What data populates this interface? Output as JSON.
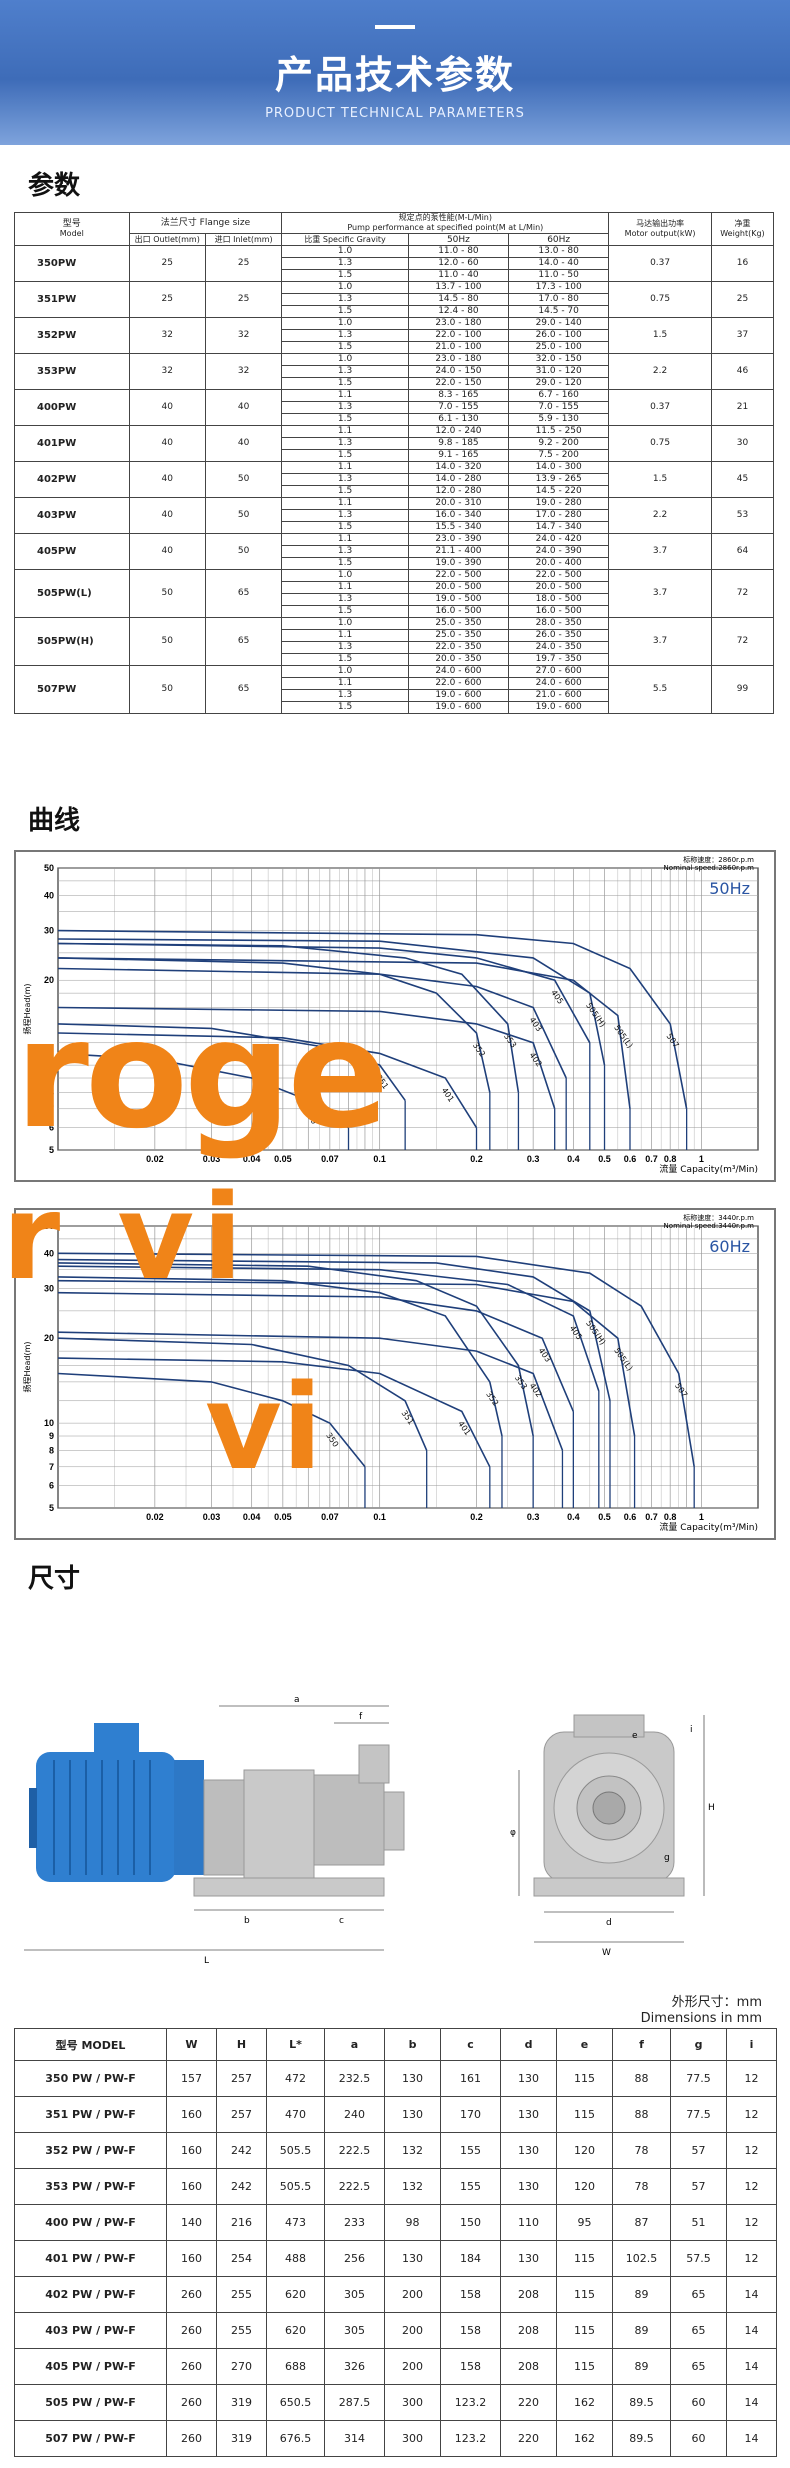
{
  "hero": {
    "title": "产品技术参数",
    "subtitle": "PRODUCT TECHNICAL PARAMETERS"
  },
  "sections": {
    "params": "参数",
    "curves": "曲线",
    "dims": "尺寸"
  },
  "params_table": {
    "h_model": "型号",
    "h_model_en": "Model",
    "h_flange": "法兰尺寸 Flange size",
    "h_outlet": "出口 Outlet(mm)",
    "h_inlet": "进口 Inlet(mm)",
    "h_perf1": "规定点的泵性能(M-L/Min)",
    "h_perf2": "Pump performance at specified point(M at L/Min)",
    "h_sg": "比重 Specific Gravity",
    "h_50": "50Hz",
    "h_60": "60Hz",
    "h_motor1": "马达输出功率",
    "h_motor2": "Motor output(kW)",
    "h_weight1": "净重",
    "h_weight2": "Weight(Kg)",
    "rows": [
      {
        "model": "350PW",
        "outlet": "25",
        "inlet": "25",
        "motor": "0.37",
        "weight": "16",
        "sg": [
          "1.0",
          "1.3",
          "1.5"
        ],
        "hz50": [
          "11.0 - 80",
          "12.0 - 60",
          "11.0 - 40"
        ],
        "hz60": [
          "13.0 - 80",
          "14.0 - 40",
          "11.0 - 50"
        ]
      },
      {
        "model": "351PW",
        "outlet": "25",
        "inlet": "25",
        "motor": "0.75",
        "weight": "25",
        "sg": [
          "1.0",
          "1.3",
          "1.5"
        ],
        "hz50": [
          "13.7 - 100",
          "14.5 - 80",
          "12.4 - 80"
        ],
        "hz60": [
          "17.3 - 100",
          "17.0 - 80",
          "14.5 - 70"
        ]
      },
      {
        "model": "352PW",
        "outlet": "32",
        "inlet": "32",
        "motor": "1.5",
        "weight": "37",
        "sg": [
          "1.0",
          "1.3",
          "1.5"
        ],
        "hz50": [
          "23.0 - 180",
          "22.0 - 100",
          "21.0 - 100"
        ],
        "hz60": [
          "29.0 - 140",
          "26.0 - 100",
          "25.0 - 100"
        ]
      },
      {
        "model": "353PW",
        "outlet": "32",
        "inlet": "32",
        "motor": "2.2",
        "weight": "46",
        "sg": [
          "1.0",
          "1.3",
          "1.5"
        ],
        "hz50": [
          "23.0 - 180",
          "24.0 - 150",
          "22.0 - 150"
        ],
        "hz60": [
          "32.0 - 150",
          "31.0 - 120",
          "29.0 - 120"
        ]
      },
      {
        "model": "400PW",
        "outlet": "40",
        "inlet": "40",
        "motor": "0.37",
        "weight": "21",
        "sg": [
          "1.1",
          "1.3",
          "1.5"
        ],
        "hz50": [
          "8.3 - 165",
          "7.0 - 155",
          "6.1 - 130"
        ],
        "hz60": [
          "6.7 - 160",
          "7.0 - 155",
          "5.9 - 130"
        ]
      },
      {
        "model": "401PW",
        "outlet": "40",
        "inlet": "40",
        "motor": "0.75",
        "weight": "30",
        "sg": [
          "1.1",
          "1.3",
          "1.5"
        ],
        "hz50": [
          "12.0 - 240",
          "9.8 - 185",
          "9.1 - 165"
        ],
        "hz60": [
          "11.5 - 250",
          "9.2 - 200",
          "7.5 - 200"
        ]
      },
      {
        "model": "402PW",
        "outlet": "40",
        "inlet": "50",
        "motor": "1.5",
        "weight": "45",
        "sg": [
          "1.1",
          "1.3",
          "1.5"
        ],
        "hz50": [
          "14.0 - 320",
          "14.0 - 280",
          "12.0 - 280"
        ],
        "hz60": [
          "14.0 - 300",
          "13.9 - 265",
          "14.5 - 220"
        ]
      },
      {
        "model": "403PW",
        "outlet": "40",
        "inlet": "50",
        "motor": "2.2",
        "weight": "53",
        "sg": [
          "1.1",
          "1.3",
          "1.5"
        ],
        "hz50": [
          "20.0 - 310",
          "16.0 - 340",
          "15.5 - 340"
        ],
        "hz60": [
          "19.0 - 280",
          "17.0 - 280",
          "14.7 - 340"
        ]
      },
      {
        "model": "405PW",
        "outlet": "40",
        "inlet": "50",
        "motor": "3.7",
        "weight": "64",
        "sg": [
          "1.1",
          "1.3",
          "1.5"
        ],
        "hz50": [
          "23.0 - 390",
          "21.1 - 400",
          "19.0 - 390"
        ],
        "hz60": [
          "24.0 - 420",
          "24.0 - 390",
          "20.0 - 400"
        ]
      },
      {
        "model": "505PW(L)",
        "outlet": "50",
        "inlet": "65",
        "motor": "3.7",
        "weight": "72",
        "sg": [
          "1.0",
          "1.1",
          "1.3",
          "1.5"
        ],
        "hz50": [
          "22.0 - 500",
          "20.0 - 500",
          "19.0 - 500",
          "16.0 - 500"
        ],
        "hz60": [
          "22.0 - 500",
          "20.0 - 500",
          "18.0 - 500",
          "16.0 - 500"
        ]
      },
      {
        "model": "505PW(H)",
        "outlet": "50",
        "inlet": "65",
        "motor": "3.7",
        "weight": "72",
        "sg": [
          "1.0",
          "1.1",
          "1.3",
          "1.5"
        ],
        "hz50": [
          "25.0 - 350",
          "25.0 - 350",
          "22.0 - 350",
          "20.0 - 350"
        ],
        "hz60": [
          "28.0 - 350",
          "26.0 - 350",
          "24.0 - 350",
          "19.7 - 350"
        ]
      },
      {
        "model": "507PW",
        "outlet": "50",
        "inlet": "65",
        "motor": "5.5",
        "weight": "99",
        "sg": [
          "1.0",
          "1.1",
          "1.3",
          "1.5"
        ],
        "hz50": [
          "24.0 - 600",
          "22.0 - 600",
          "19.0 - 600",
          "19.0 - 600"
        ],
        "hz60": [
          "27.0 - 600",
          "24.0 - 600",
          "21.0 - 600",
          "19.0 - 600"
        ]
      }
    ]
  },
  "chart_data": [
    {
      "type": "line",
      "freq_label": "50Hz",
      "speed_cn": "标称速度：2860r.p.m",
      "speed_en": "Nominal speed:2860r.p.m",
      "ylabel": "扬程Head(m)",
      "xlabel": "流量 Capacity(m³/Min)",
      "xscale": "log",
      "yscale": "log",
      "xlim": [
        0.01,
        1.5
      ],
      "ylim": [
        5,
        50
      ],
      "xticks": [
        "0.02",
        "0.03",
        "0.04",
        "0.05",
        "0.07",
        "0.1",
        "0.2",
        "0.3",
        "0.4",
        "0.5",
        "0.6",
        "0.7",
        "0.8",
        "1"
      ],
      "yticks": [
        "5",
        "6",
        "7",
        "8",
        "9",
        "10",
        "20",
        "30",
        "40",
        "50"
      ],
      "series": [
        {
          "name": "350",
          "points": [
            [
              0.01,
              11
            ],
            [
              0.02,
              10.5
            ],
            [
              0.04,
              9
            ],
            [
              0.06,
              7.5
            ],
            [
              0.08,
              6
            ]
          ]
        },
        {
          "name": "351",
          "points": [
            [
              0.01,
              14
            ],
            [
              0.03,
              13.5
            ],
            [
              0.07,
              11.5
            ],
            [
              0.1,
              10
            ],
            [
              0.12,
              7.5
            ]
          ]
        },
        {
          "name": "401",
          "points": [
            [
              0.01,
              13
            ],
            [
              0.05,
              12.5
            ],
            [
              0.1,
              11
            ],
            [
              0.16,
              9
            ],
            [
              0.2,
              6
            ]
          ]
        },
        {
          "name": "352",
          "points": [
            [
              0.01,
              24
            ],
            [
              0.05,
              23
            ],
            [
              0.1,
              21
            ],
            [
              0.15,
              18
            ],
            [
              0.2,
              13
            ],
            [
              0.22,
              8
            ]
          ]
        },
        {
          "name": "353",
          "points": [
            [
              0.01,
              27
            ],
            [
              0.05,
              26.5
            ],
            [
              0.12,
              24
            ],
            [
              0.18,
              21
            ],
            [
              0.25,
              14
            ],
            [
              0.27,
              8
            ]
          ]
        },
        {
          "name": "402",
          "points": [
            [
              0.01,
              16
            ],
            [
              0.1,
              15.5
            ],
            [
              0.2,
              14
            ],
            [
              0.3,
              12
            ],
            [
              0.35,
              7
            ]
          ]
        },
        {
          "name": "403",
          "points": [
            [
              0.01,
              22
            ],
            [
              0.1,
              21
            ],
            [
              0.2,
              19
            ],
            [
              0.3,
              16
            ],
            [
              0.38,
              9
            ]
          ]
        },
        {
          "name": "405",
          "points": [
            [
              0.01,
              27
            ],
            [
              0.1,
              26
            ],
            [
              0.2,
              24
            ],
            [
              0.35,
              20
            ],
            [
              0.45,
              12
            ]
          ]
        },
        {
          "name": "505(H)",
          "points": [
            [
              0.01,
              28
            ],
            [
              0.1,
              27.5
            ],
            [
              0.3,
              24
            ],
            [
              0.45,
              18
            ],
            [
              0.5,
              10
            ]
          ]
        },
        {
          "name": "505(L)",
          "points": [
            [
              0.01,
              24
            ],
            [
              0.2,
              23
            ],
            [
              0.4,
              20
            ],
            [
              0.55,
              15
            ],
            [
              0.6,
              7
            ]
          ]
        },
        {
          "name": "507",
          "points": [
            [
              0.01,
              30
            ],
            [
              0.2,
              29
            ],
            [
              0.4,
              27
            ],
            [
              0.6,
              22
            ],
            [
              0.8,
              14
            ],
            [
              0.9,
              7
            ]
          ]
        }
      ]
    },
    {
      "type": "line",
      "freq_label": "60Hz",
      "speed_cn": "标称速度：3440r.p.m",
      "speed_en": "Nominal speed:3440r.p.m",
      "ylabel": "扬程Head(m)",
      "xlabel": "流量 Capacity(m³/Min)",
      "xscale": "log",
      "yscale": "log",
      "xlim": [
        0.01,
        1.5
      ],
      "ylim": [
        5,
        50
      ],
      "xticks": [
        "0.02",
        "0.03",
        "0.04",
        "0.05",
        "0.07",
        "0.1",
        "0.2",
        "0.3",
        "0.4",
        "0.5",
        "0.6",
        "0.7",
        "0.8",
        "1"
      ],
      "yticks": [
        "5",
        "6",
        "7",
        "8",
        "9",
        "10",
        "20",
        "30",
        "40",
        "50"
      ],
      "series": [
        {
          "name": "350",
          "points": [
            [
              0.01,
              15
            ],
            [
              0.03,
              14
            ],
            [
              0.05,
              12
            ],
            [
              0.07,
              10
            ],
            [
              0.09,
              7
            ]
          ]
        },
        {
          "name": "351",
          "points": [
            [
              0.01,
              20
            ],
            [
              0.04,
              19
            ],
            [
              0.08,
              16
            ],
            [
              0.12,
              12
            ],
            [
              0.14,
              8
            ]
          ]
        },
        {
          "name": "401",
          "points": [
            [
              0.01,
              17
            ],
            [
              0.05,
              16.5
            ],
            [
              0.1,
              15
            ],
            [
              0.18,
              11
            ],
            [
              0.22,
              7
            ]
          ]
        },
        {
          "name": "352",
          "points": [
            [
              0.01,
              33
            ],
            [
              0.05,
              32
            ],
            [
              0.1,
              29
            ],
            [
              0.16,
              24
            ],
            [
              0.22,
              14
            ],
            [
              0.24,
              9
            ]
          ]
        },
        {
          "name": "353",
          "points": [
            [
              0.01,
              37
            ],
            [
              0.06,
              36
            ],
            [
              0.13,
              32
            ],
            [
              0.2,
              26
            ],
            [
              0.27,
              16
            ],
            [
              0.3,
              9
            ]
          ]
        },
        {
          "name": "402",
          "points": [
            [
              0.01,
              21
            ],
            [
              0.1,
              20
            ],
            [
              0.2,
              18
            ],
            [
              0.3,
              15
            ],
            [
              0.37,
              8
            ]
          ]
        },
        {
          "name": "403",
          "points": [
            [
              0.01,
              29
            ],
            [
              0.1,
              28
            ],
            [
              0.2,
              25
            ],
            [
              0.32,
              20
            ],
            [
              0.4,
              11
            ]
          ]
        },
        {
          "name": "405",
          "points": [
            [
              0.01,
              36
            ],
            [
              0.1,
              35
            ],
            [
              0.25,
              31
            ],
            [
              0.4,
              24
            ],
            [
              0.48,
              13
            ]
          ]
        },
        {
          "name": "505(H)",
          "points": [
            [
              0.01,
              38
            ],
            [
              0.15,
              37
            ],
            [
              0.3,
              33
            ],
            [
              0.45,
              25
            ],
            [
              0.52,
              12
            ]
          ]
        },
        {
          "name": "505(L)",
          "points": [
            [
              0.01,
              32
            ],
            [
              0.2,
              31
            ],
            [
              0.4,
              27
            ],
            [
              0.55,
              20
            ],
            [
              0.62,
              9
            ]
          ]
        },
        {
          "name": "507",
          "points": [
            [
              0.01,
              40
            ],
            [
              0.2,
              39
            ],
            [
              0.45,
              34
            ],
            [
              0.65,
              26
            ],
            [
              0.85,
              15
            ],
            [
              0.95,
              7
            ]
          ]
        }
      ]
    }
  ],
  "dims_unit_cn": "外形尺寸：mm",
  "dims_unit_en": "Dimensions in mm",
  "dim_labels": [
    "a",
    "f",
    "b",
    "c",
    "L",
    "H",
    "φ",
    "e",
    "d",
    "W",
    "i",
    "g"
  ],
  "dims_table": {
    "headers": [
      "型号 MODEL",
      "W",
      "H",
      "L*",
      "a",
      "b",
      "c",
      "d",
      "e",
      "f",
      "g",
      "i"
    ],
    "rows": [
      [
        "350 PW / PW-F",
        "157",
        "257",
        "472",
        "232.5",
        "130",
        "161",
        "130",
        "115",
        "88",
        "77.5",
        "12"
      ],
      [
        "351 PW / PW-F",
        "160",
        "257",
        "470",
        "240",
        "130",
        "170",
        "130",
        "115",
        "88",
        "77.5",
        "12"
      ],
      [
        "352 PW / PW-F",
        "160",
        "242",
        "505.5",
        "222.5",
        "132",
        "155",
        "130",
        "120",
        "78",
        "57",
        "12"
      ],
      [
        "353 PW / PW-F",
        "160",
        "242",
        "505.5",
        "222.5",
        "132",
        "155",
        "130",
        "120",
        "78",
        "57",
        "12"
      ],
      [
        "400 PW / PW-F",
        "140",
        "216",
        "473",
        "233",
        "98",
        "150",
        "110",
        "95",
        "87",
        "51",
        "12"
      ],
      [
        "401 PW / PW-F",
        "160",
        "254",
        "488",
        "256",
        "130",
        "184",
        "130",
        "115",
        "102.5",
        "57.5",
        "12"
      ],
      [
        "402 PW / PW-F",
        "260",
        "255",
        "620",
        "305",
        "200",
        "158",
        "208",
        "115",
        "89",
        "65",
        "14"
      ],
      [
        "403 PW / PW-F",
        "260",
        "255",
        "620",
        "305",
        "200",
        "158",
        "208",
        "115",
        "89",
        "65",
        "14"
      ],
      [
        "405 PW / PW-F",
        "260",
        "270",
        "688",
        "326",
        "200",
        "158",
        "208",
        "115",
        "89",
        "65",
        "14"
      ],
      [
        "505 PW / PW-F",
        "260",
        "319",
        "650.5",
        "287.5",
        "300",
        "123.2",
        "220",
        "162",
        "89.5",
        "60",
        "14"
      ],
      [
        "507 PW / PW-F",
        "260",
        "319",
        "676.5",
        "314",
        "300",
        "123.2",
        "220",
        "162",
        "89.5",
        "60",
        "14"
      ]
    ]
  },
  "watermarks": [
    "roge",
    "r vi",
    "vi"
  ],
  "colors": {
    "hero": "#4675c2",
    "curve": "#1f3f7a",
    "motor": "#2f7fd0",
    "watermark": "#f08418"
  }
}
